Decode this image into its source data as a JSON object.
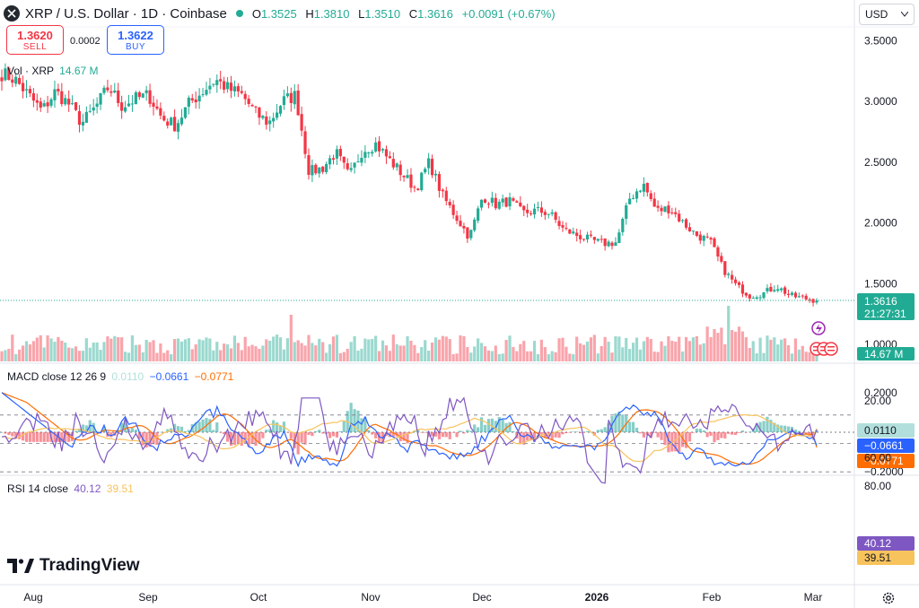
{
  "header": {
    "symbol_title": "XRP / U.S. Dollar · 1D · Coinbase",
    "open_label": "O",
    "open": "1.3525",
    "high_label": "H",
    "high": "1.3810",
    "low_label": "L",
    "low": "1.3510",
    "close_label": "C",
    "close": "1.3616",
    "change": "+0.0091 (+0.67%)",
    "currency": "USD"
  },
  "trade": {
    "sell_price": "1.3620",
    "sell_label": "SELL",
    "spread": "0.0002",
    "buy_price": "1.3622",
    "buy_label": "BUY"
  },
  "volume_label": {
    "name": "Vol · XRP",
    "value": "14.67 M"
  },
  "macd_label": {
    "name": "MACD close 12 26 9",
    "hist": "0.0110",
    "macd": "−0.0661",
    "signal": "−0.0771"
  },
  "rsi_label": {
    "name": "RSI 14 close",
    "rsi": "40.12",
    "ma": "39.51"
  },
  "brand": {
    "name": "TradingView"
  },
  "colors": {
    "up": "#22ab94",
    "down": "#f23645",
    "macd": "#2962ff",
    "signal": "#ff6d00",
    "rsi": "#7e57c2",
    "rsi_ma": "#f7c35c"
  },
  "chart_data": [
    {
      "type": "candlestick",
      "title": "XRP / U.S. Dollar · 1D · Coinbase",
      "x_ticks": [
        "Aug",
        "Sep",
        "Oct",
        "Nov",
        "Dec",
        "2026",
        "Feb",
        "Mar"
      ],
      "y_ticks": [
        "3.5000",
        "3.0000",
        "2.5000",
        "2.0000",
        "1.5000",
        "1.0000"
      ],
      "ylim": [
        0.95,
        3.6
      ],
      "last_price": "1.3616",
      "countdown": "21:27:31",
      "approx_close_path": [
        3.23,
        3.18,
        3.05,
        2.92,
        3.08,
        2.98,
        2.82,
        2.95,
        3.12,
        2.96,
        3.02,
        3.05,
        2.86,
        2.8,
        2.98,
        3.08,
        3.18,
        3.1,
        3.05,
        2.9,
        2.82,
        3.0,
        3.05,
        2.42,
        2.45,
        2.58,
        2.38,
        2.6,
        2.65,
        2.52,
        2.4,
        2.28,
        2.5,
        2.22,
        2.05,
        1.88,
        2.22,
        2.15,
        2.18,
        2.08,
        2.1,
        2.08,
        1.95,
        1.9,
        1.86,
        1.83,
        1.84,
        2.2,
        2.32,
        2.1,
        2.12,
        2.0,
        1.9,
        1.85,
        1.62,
        1.48,
        1.4,
        1.42,
        1.48,
        1.4,
        1.38,
        1.3616
      ]
    },
    {
      "type": "bar",
      "title": "Vol · XRP",
      "last_value": "14.67 M"
    },
    {
      "type": "line",
      "title": "MACD close 12 26 9",
      "y_ticks": [
        "0.2000",
        "0.0000",
        "−0.2000"
      ],
      "ylim": [
        -0.2,
        0.2
      ],
      "series": [
        {
          "name": "MACD",
          "last": -0.0661
        },
        {
          "name": "Signal",
          "last": -0.0771
        },
        {
          "name": "Histogram",
          "last": 0.011
        }
      ]
    },
    {
      "type": "line",
      "title": "RSI 14 close",
      "y_ticks": [
        "80.00",
        "60.00",
        "20.00"
      ],
      "ylim": [
        20,
        80
      ],
      "bands": [
        30,
        50,
        70
      ],
      "series": [
        {
          "name": "RSI",
          "last": 40.12
        },
        {
          "name": "RSI MA",
          "last": 39.51
        }
      ]
    }
  ]
}
